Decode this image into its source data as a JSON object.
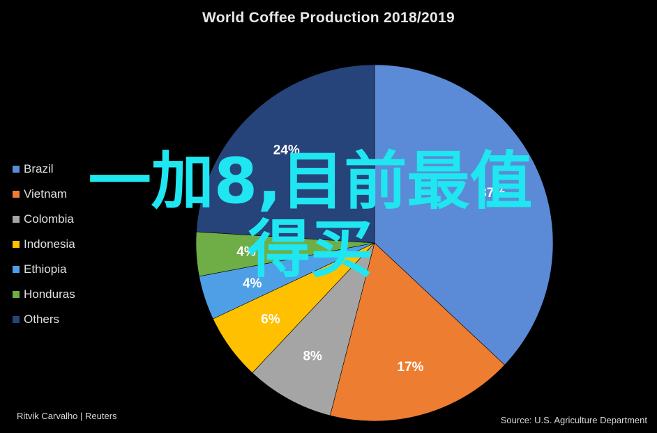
{
  "chart_data": {
    "type": "pie",
    "title": "World Coffee Production 2018/2019",
    "categories": [
      "Brazil",
      "Vietnam",
      "Colombia",
      "Indonesia",
      "Ethiopia",
      "Honduras",
      "Others"
    ],
    "values": [
      37,
      17,
      8,
      6,
      4,
      4,
      24
    ],
    "labels": [
      "37%",
      "17%",
      "8%",
      "6%",
      "4%",
      "4%",
      "24%"
    ],
    "colors": [
      "#5b8bd6",
      "#ed7d31",
      "#a5a5a5",
      "#ffc000",
      "#4f9fe6",
      "#6fad47",
      "#26437a"
    ],
    "legend_position": "left"
  },
  "credit": "Ritvik Carvalho | Reuters",
  "source": "Source: U.S. Agriculture Department",
  "overlay": {
    "line1": "一加8,目前最值",
    "line2": "得买"
  }
}
